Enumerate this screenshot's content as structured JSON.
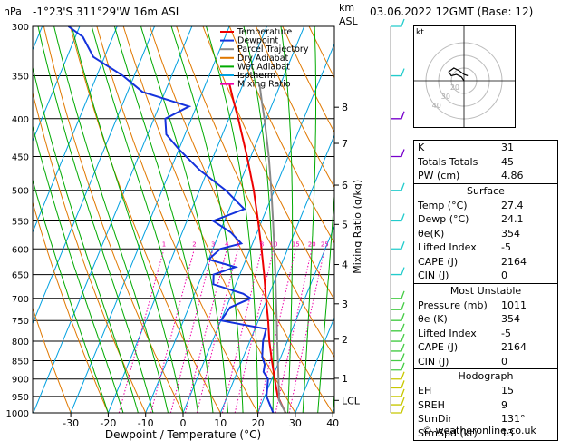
{
  "header": {
    "location": "-1°23'S  311°29'W  16m  ASL",
    "datetime": "03.06.2022  12GMT  (Base: 12)",
    "hpa_unit": "hPa",
    "km_unit": "km",
    "asl_unit": "ASL"
  },
  "footer": {
    "credit": "© weatheronline.co.uk"
  },
  "chart_data": {
    "type": "line",
    "subtype": "skew-t log-p diagram",
    "xlabel": "Dewpoint / Temperature (°C)",
    "ylabel": "hPa",
    "right_axis_label": "Mixing Ratio (g/kg)",
    "x_ticks": [
      -30,
      -20,
      -10,
      0,
      10,
      20,
      30,
      40
    ],
    "xlim": [
      -35,
      40
    ],
    "pressure_ticks": [
      300,
      350,
      400,
      450,
      500,
      550,
      600,
      650,
      700,
      750,
      800,
      850,
      900,
      950,
      1000
    ],
    "ylim": [
      1000,
      300
    ],
    "height_ticks": [
      {
        "km": "8",
        "p": 386
      },
      {
        "km": "7",
        "p": 432
      },
      {
        "km": "6",
        "p": 492
      },
      {
        "km": "5",
        "p": 556
      },
      {
        "km": "4",
        "p": 630
      },
      {
        "km": "3",
        "p": 712
      },
      {
        "km": "2",
        "p": 795
      },
      {
        "km": "1",
        "p": 898
      },
      {
        "km": "LCL",
        "p": 962
      }
    ],
    "mixing_ratio_labels": [
      "1",
      "2",
      "3",
      "4",
      "5",
      "8",
      "10",
      "15",
      "20",
      "25"
    ],
    "legend": {
      "placement": "top-left",
      "entries": [
        {
          "name": "Temperature",
          "color": "#ee0000"
        },
        {
          "name": "Dewpoint",
          "color": "#1432dc"
        },
        {
          "name": "Parcel Trajectory",
          "color": "#888888"
        },
        {
          "name": "Dry Adiabat",
          "color": "#e07800"
        },
        {
          "name": "Wet Adiabat",
          "color": "#00aa00"
        },
        {
          "name": "Isotherm",
          "color": "#00a0e0"
        },
        {
          "name": "Mixing Ratio",
          "color": "#ee00aa"
        }
      ]
    },
    "series": [
      {
        "name": "Temperature",
        "color": "#ee0000",
        "points": [
          [
            1000,
            27.4
          ],
          [
            950,
            23.5
          ],
          [
            900,
            20.8
          ],
          [
            850,
            18.0
          ],
          [
            800,
            15.2
          ],
          [
            750,
            12.6
          ],
          [
            700,
            9.6
          ],
          [
            650,
            6.5
          ],
          [
            600,
            3.0
          ],
          [
            550,
            -1.0
          ],
          [
            500,
            -5.5
          ],
          [
            450,
            -11.0
          ],
          [
            400,
            -17.5
          ],
          [
            380,
            -20.5
          ],
          [
            360,
            -23.5
          ]
        ]
      },
      {
        "name": "Dewpoint",
        "color": "#1432dc",
        "points": [
          [
            1000,
            24.1
          ],
          [
            950,
            20.5
          ],
          [
            900,
            19.0
          ],
          [
            880,
            17.0
          ],
          [
            860,
            16.5
          ],
          [
            840,
            15.0
          ],
          [
            800,
            13.5
          ],
          [
            770,
            13.0
          ],
          [
            750,
            0.0
          ],
          [
            720,
            1.0
          ],
          [
            700,
            5.5
          ],
          [
            690,
            3.0
          ],
          [
            670,
            -6.0
          ],
          [
            650,
            -7.0
          ],
          [
            635,
            -2.0
          ],
          [
            620,
            -10.0
          ],
          [
            600,
            -8.0
          ],
          [
            590,
            -3.0
          ],
          [
            570,
            -7.0
          ],
          [
            550,
            -13.0
          ],
          [
            530,
            -6.0
          ],
          [
            500,
            -13.0
          ],
          [
            470,
            -22.0
          ],
          [
            440,
            -30.0
          ],
          [
            420,
            -35.0
          ],
          [
            400,
            -37.0
          ],
          [
            385,
            -32.0
          ],
          [
            368,
            -46.0
          ],
          [
            350,
            -53.0
          ],
          [
            330,
            -63.0
          ],
          [
            310,
            -68.0
          ],
          [
            300,
            -73.0
          ]
        ]
      },
      {
        "name": "Parcel Trajectory",
        "color": "#888888",
        "points": [
          [
            1000,
            27.4
          ],
          [
            962,
            24.3
          ],
          [
            900,
            21.8
          ],
          [
            850,
            19.6
          ],
          [
            800,
            17.3
          ],
          [
            750,
            14.9
          ],
          [
            700,
            12.3
          ],
          [
            650,
            9.5
          ],
          [
            600,
            6.4
          ],
          [
            550,
            3.0
          ],
          [
            500,
            -0.8
          ],
          [
            450,
            -5.2
          ],
          [
            400,
            -10.5
          ],
          [
            380,
            -13.0
          ],
          [
            360,
            -15.5
          ]
        ]
      }
    ],
    "wind_barbs_right": [
      1000,
      975,
      950,
      925,
      900,
      875,
      850,
      825,
      800,
      775,
      750,
      725,
      700,
      650,
      600,
      550,
      500,
      450,
      400,
      350,
      300
    ],
    "hodograph": {
      "unit": "kt",
      "ring_labels": [
        "40",
        "30",
        "20"
      ],
      "points": [
        [
          0,
          0
        ],
        [
          -2,
          3
        ],
        [
          -6,
          5
        ],
        [
          -10,
          4
        ],
        [
          -12,
          7
        ],
        [
          -8,
          10
        ],
        [
          -4,
          8
        ],
        [
          0,
          5
        ],
        [
          3,
          4
        ]
      ]
    }
  },
  "indices": {
    "top": [
      {
        "label": "K",
        "value": "31"
      },
      {
        "label": "Totals Totals",
        "value": "45"
      },
      {
        "label": "PW (cm)",
        "value": "4.86"
      }
    ],
    "surface": {
      "title": "Surface",
      "rows": [
        {
          "label": "Temp (°C)",
          "value": "27.4"
        },
        {
          "label": "Dewp (°C)",
          "value": "24.1"
        },
        {
          "label": "θe(K)",
          "value": "354"
        },
        {
          "label": "Lifted Index",
          "value": "-5"
        },
        {
          "label": "CAPE (J)",
          "value": "2164"
        },
        {
          "label": "CIN (J)",
          "value": "0"
        }
      ]
    },
    "most_unstable": {
      "title": "Most Unstable",
      "rows": [
        {
          "label": "Pressure (mb)",
          "value": "1011"
        },
        {
          "label": "θe (K)",
          "value": "354"
        },
        {
          "label": "Lifted Index",
          "value": "-5"
        },
        {
          "label": "CAPE (J)",
          "value": "2164"
        },
        {
          "label": "CIN (J)",
          "value": "0"
        }
      ]
    },
    "hodograph": {
      "title": "Hodograph",
      "rows": [
        {
          "label": "EH",
          "value": "15"
        },
        {
          "label": "SREH",
          "value": "9"
        },
        {
          "label": "StmDir",
          "value": "131°"
        },
        {
          "label": "StmSpd (kt)",
          "value": "13"
        }
      ]
    }
  }
}
